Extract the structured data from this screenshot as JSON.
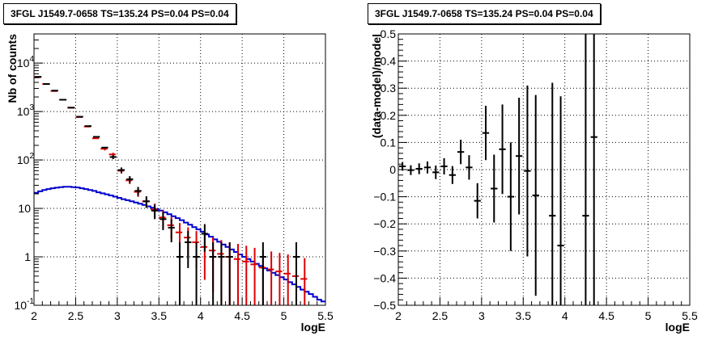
{
  "chart_data": [
    {
      "type": "step",
      "title": "3FGL J1549.7-0658 TS=135.24 PS=0.04 PS=0.04",
      "xlabel": "logE",
      "ylabel": "Nb of counts",
      "xlim": [
        2,
        5.5
      ],
      "ylim": [
        0.1,
        40000
      ],
      "yscale": "log",
      "grid": true,
      "x_ticks": [
        2,
        2.5,
        3,
        3.5,
        4,
        4.5,
        5,
        5.5
      ],
      "x_tick_labels": [
        "2",
        "2.5",
        "3",
        "3.5",
        "4",
        "4.5",
        "5",
        "5.5"
      ],
      "y_ticks": [
        0.1,
        1,
        10,
        100,
        1000,
        10000
      ],
      "y_tick_labels": [
        {
          "mantissa": "10",
          "exp": "-1"
        },
        {
          "mantissa": "1",
          "exp": ""
        },
        {
          "mantissa": "10",
          "exp": ""
        },
        {
          "mantissa": "10",
          "exp": "2"
        },
        {
          "mantissa": "10",
          "exp": "3"
        },
        {
          "mantissa": "10",
          "exp": "4"
        }
      ],
      "bin_width": 0.1,
      "series": [
        {
          "role": "data",
          "color": "#000000",
          "x": [
            2.05,
            2.15,
            2.25,
            2.35,
            2.45,
            2.55,
            2.65,
            2.75,
            2.85,
            2.95,
            3.05,
            3.15,
            3.25,
            3.35,
            3.45,
            3.55,
            3.65,
            3.75,
            3.85,
            3.95,
            4.05,
            4.15,
            4.25,
            4.35,
            4.45,
            4.55,
            4.65,
            4.75,
            4.85,
            4.95,
            5.05,
            5.15
          ],
          "values": [
            5200,
            3700,
            2700,
            1750,
            1200,
            780,
            500,
            300,
            180,
            115,
            62,
            40,
            23,
            14,
            9,
            6,
            4,
            1,
            2,
            1,
            3,
            1,
            1,
            1,
            0,
            0,
            0,
            1,
            0,
            0,
            0,
            1
          ]
        },
        {
          "role": "model",
          "color": "#dd0000",
          "x": [
            2.05,
            2.15,
            2.25,
            2.35,
            2.45,
            2.55,
            2.65,
            2.75,
            2.85,
            2.95,
            3.05,
            3.15,
            3.25,
            3.35,
            3.45,
            3.55,
            3.65,
            3.75,
            3.85,
            3.95,
            4.05,
            4.15,
            4.25,
            4.35,
            4.45,
            4.55,
            4.65,
            4.75,
            4.85,
            4.95,
            5.05,
            5.15,
            5.25
          ],
          "values": [
            5100,
            3700,
            2650,
            1750,
            1200,
            770,
            490,
            280,
            170,
            130,
            60,
            38,
            22,
            14,
            9.5,
            6.5,
            4.5,
            3.2,
            2.5,
            2.0,
            1.6,
            1.35,
            1.15,
            1.0,
            0.9,
            0.8,
            0.7,
            0.6,
            0.55,
            0.5,
            0.45,
            0.4,
            0.35
          ]
        },
        {
          "role": "background",
          "color": "#0000cc",
          "bin_edges": [
            2.0,
            2.05,
            2.1,
            2.15,
            2.2,
            2.25,
            2.3,
            2.35,
            2.4,
            2.45,
            2.5,
            2.55,
            2.6,
            2.65,
            2.7,
            2.75,
            2.8,
            2.85,
            2.9,
            2.95,
            3.0,
            3.05,
            3.1,
            3.15,
            3.2,
            3.25,
            3.3,
            3.35,
            3.4,
            3.45,
            3.5,
            3.55,
            3.6,
            3.65,
            3.7,
            3.75,
            3.8,
            3.85,
            3.9,
            3.95,
            4.0,
            4.05,
            4.1,
            4.15,
            4.2,
            4.25,
            4.3,
            4.35,
            4.4,
            4.45,
            4.5,
            4.55,
            4.6,
            4.65,
            4.7,
            4.75,
            4.8,
            4.85,
            4.9,
            4.95,
            5.0,
            5.05,
            5.1,
            5.15,
            5.2,
            5.25,
            5.3,
            5.35,
            5.4,
            5.45,
            5.5
          ],
          "values": [
            21,
            22.5,
            24,
            25,
            26,
            26.8,
            27.5,
            28,
            28,
            27.5,
            27,
            26,
            25,
            24,
            23,
            21.5,
            20.5,
            19.5,
            18.5,
            17.5,
            16.5,
            15.5,
            14.8,
            14,
            13.2,
            12.5,
            11.8,
            11,
            10.3,
            9.7,
            9.0,
            8.3,
            7.6,
            6.9,
            6.3,
            5.7,
            5.1,
            4.6,
            4.1,
            3.7,
            3.3,
            2.9,
            2.6,
            2.3,
            2.05,
            1.8,
            1.6,
            1.42,
            1.26,
            1.12,
            1.0,
            0.9,
            0.8,
            0.72,
            0.65,
            0.58,
            0.52,
            0.47,
            0.42,
            0.38,
            0.34,
            0.3,
            0.27,
            0.24,
            0.21,
            0.19,
            0.17,
            0.15,
            0.13,
            0.12
          ]
        }
      ]
    },
    {
      "type": "scatter",
      "title": "3FGL J1549.7-0658 TS=135.24 PS=0.04 PS=0.04",
      "xlabel": "logE",
      "ylabel": "(data-model)/model",
      "xlim": [
        2,
        5.5
      ],
      "ylim": [
        -0.5,
        0.5
      ],
      "grid": true,
      "x_ticks": [
        2,
        2.5,
        3,
        3.5,
        4,
        4.5,
        5,
        5.5
      ],
      "x_tick_labels": [
        "2",
        "2.5",
        "3",
        "3.5",
        "4",
        "4.5",
        "5",
        "5.5"
      ],
      "y_ticks": [
        -0.5,
        -0.4,
        -0.3,
        -0.2,
        -0.1,
        0,
        0.1,
        0.2,
        0.3,
        0.4,
        0.5
      ],
      "y_tick_labels": [
        "−0.5",
        "−0.4",
        "−0.3",
        "−0.2",
        "−0.1",
        "0",
        "0.1",
        "0.2",
        "0.3",
        "0.4",
        "0.5"
      ],
      "series": [
        {
          "role": "residual",
          "color": "#000000",
          "x": [
            2.05,
            2.15,
            2.25,
            2.35,
            2.45,
            2.55,
            2.65,
            2.75,
            2.85,
            2.95,
            3.05,
            3.15,
            3.25,
            3.35,
            3.45,
            3.55,
            3.65,
            3.85,
            3.95,
            4.25,
            4.35
          ],
          "values": [
            0.012,
            -0.002,
            0.003,
            0.008,
            -0.01,
            0.012,
            -0.02,
            0.065,
            0.008,
            -0.115,
            0.135,
            -0.07,
            0.075,
            -0.1,
            0.05,
            -0.005,
            -0.095,
            -0.17,
            -0.28,
            -0.17,
            0.12
          ],
          "errors": [
            0.016,
            0.018,
            0.02,
            0.022,
            0.025,
            0.03,
            0.033,
            0.045,
            0.045,
            0.065,
            0.1,
            0.125,
            0.165,
            0.2,
            0.215,
            0.315,
            0.37,
            0.49,
            0.55,
            1.0,
            1.0
          ]
        }
      ]
    }
  ]
}
